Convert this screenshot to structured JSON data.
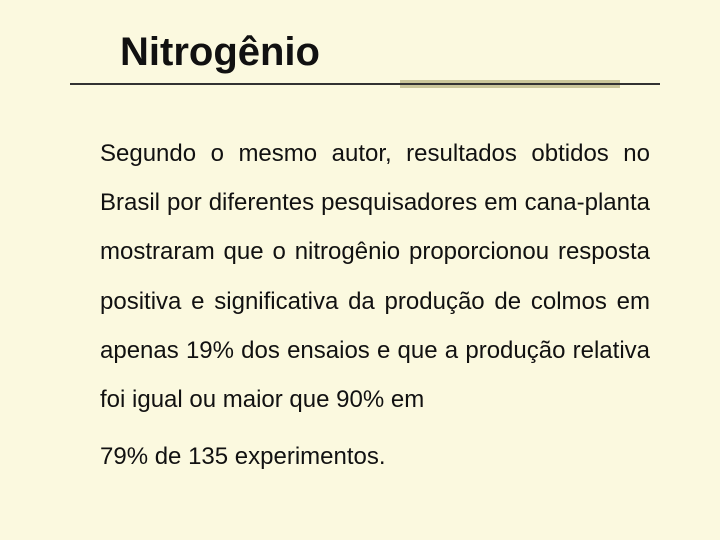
{
  "slide": {
    "title": "Nitrogênio",
    "body_main": "Segundo o mesmo autor, resultados obtidos no Brasil por diferentes pesquisadores em cana-planta mostraram que o nitrogênio proporcionou resposta positiva e significativa da produção de colmos em apenas 19% dos ensaios e que a produção relativa foi igual ou maior que 90% em",
    "body_last": "79% de 135 experimentos."
  },
  "style": {
    "background_color": "#fbf9df",
    "title_fontsize": 40,
    "title_weight": 700,
    "title_color": "#111111",
    "body_fontsize": 24,
    "body_color": "#111111",
    "divider_color": "#333333",
    "accent_color": "#cac69a",
    "font_family": "Arial"
  }
}
